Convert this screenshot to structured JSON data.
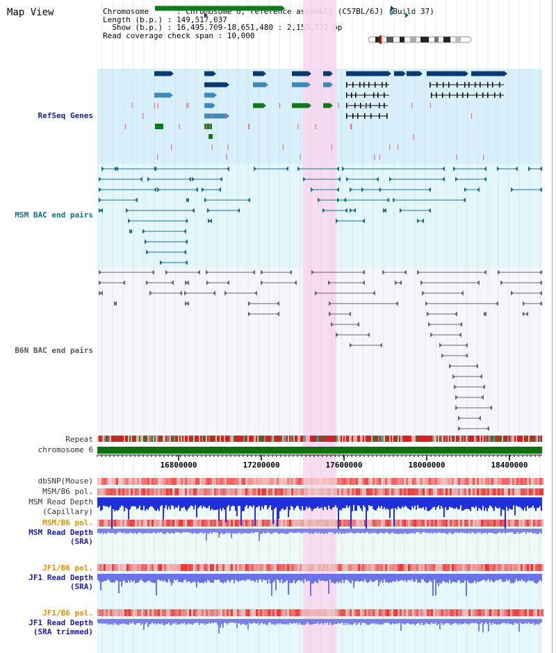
{
  "title": "Map View",
  "info": {
    "line1": "Chromosome      : Chromosome 6, reference assembly (C57BL/6J) (Build 37)",
    "line2": "Length (b.p.) : 149,517,037",
    "line3": "  Show (b.p.) : 16,495,709-18,651,480 : 2,155,772 bp",
    "line4": "Read coverage check span : 10,000"
  },
  "tracks": {
    "refseq": "RefSeq Genes",
    "msm_bac": "MSM BAC end pairs",
    "b6n_bac": "B6N BAC end pairs",
    "repeat": "Repeat",
    "chromosome": "chromosome 6",
    "dbsnp": "dbSNP(Mouse)",
    "msm_b6_pol_1": "MSM/B6 pol.",
    "msm_read_depth_cap_1": "MSM Read Depth",
    "msm_read_depth_cap_2": "(Capillary)",
    "msm_b6_pol_2": "MSM/B6 pol.",
    "msm_read_depth_sra_1": "MSM Read Depth",
    "msm_read_depth_sra_2": "(SRA)",
    "jf1_b6_pol_1": "JF1/B6 pol.",
    "jf1_read_depth_sra_1": "JF1 Read Depth",
    "jf1_read_depth_sra_2": "(SRA)",
    "jf1_b6_pol_2": "JF1/B6 pol.",
    "jf1_read_depth_trim_1": "JF1 Read Depth",
    "jf1_read_depth_trim_2": "(SRA trimmed)"
  },
  "axis": {
    "ticks": [
      "16800000",
      "17200000",
      "17600000",
      "18000000",
      "18400000"
    ]
  },
  "colors": {
    "refseq_bg": "#d8f0fa",
    "msm_bg": "#e3f7fa",
    "b6n_bg": "#f4f6fb",
    "highlight": "#f8d8f0",
    "gene_dark": "#0b3a6e",
    "gene_mid": "#3d8ab8",
    "gene_green": "#0f7a1a",
    "pink_mark": "#e56b9a",
    "msm_pair": "#1a6e8c",
    "b6n_pair": "#666666",
    "chromosome_bar": "#107010",
    "depth_blue": "#1f2fdb",
    "depth_violet": "#6b72e6"
  }
}
